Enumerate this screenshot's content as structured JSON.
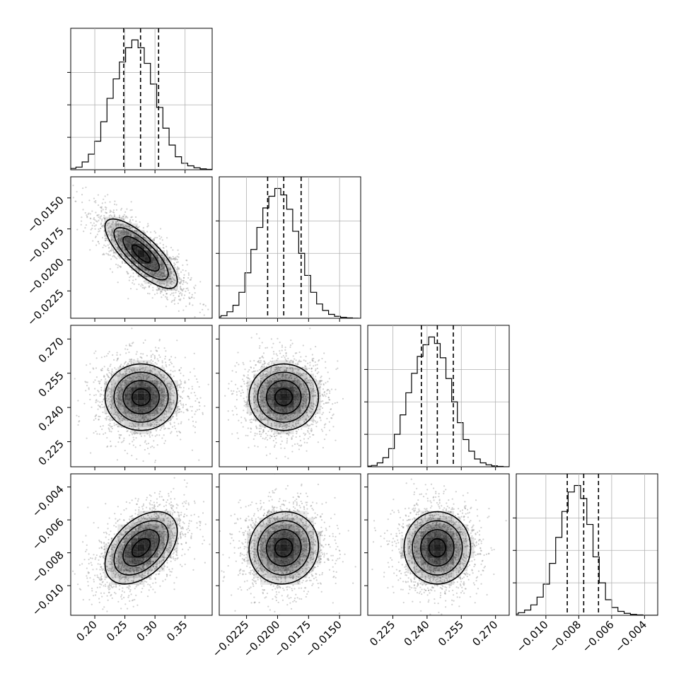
{
  "chart_data": {
    "type": "corner",
    "parameters": [
      {
        "ticks": [
          0.2,
          0.25,
          0.3,
          0.35
        ],
        "tick_labels": [
          "0.20",
          "0.25",
          "0.30",
          "0.35"
        ],
        "range": [
          0.16,
          0.395
        ],
        "mean": 0.277,
        "sigma": 0.03,
        "quantiles": [
          0.248,
          0.276,
          0.306
        ],
        "hist": [
          0.5,
          1,
          2,
          6,
          12,
          22,
          37,
          55,
          70,
          83,
          94,
          100,
          94,
          82,
          66,
          48,
          32,
          19,
          10,
          5,
          3,
          1.5,
          0.7,
          0.3,
          0
        ]
      },
      {
        "ticks": [
          -0.0225,
          -0.02,
          -0.0175,
          -0.015
        ],
        "tick_labels": [
          "−0.0225",
          "−0.0200",
          "−0.0175",
          "−0.0150"
        ],
        "range": [
          -0.0247,
          -0.0133
        ],
        "mean": -0.0195,
        "sigma": 0.0014,
        "quantiles": [
          -0.0208,
          -0.0195,
          -0.0181
        ],
        "hist": [
          0.5,
          1,
          2,
          5,
          10,
          20,
          35,
          53,
          70,
          85,
          94,
          100,
          95,
          84,
          67,
          50,
          33,
          20,
          11,
          6,
          3,
          1.5,
          0.7,
          0.3,
          0
        ]
      },
      {
        "ticks": [
          0.225,
          0.24,
          0.255,
          0.27
        ],
        "tick_labels": [
          "0.225",
          "0.240",
          "0.255",
          "0.270"
        ],
        "range": [
          0.214,
          0.276
        ],
        "mean": 0.2445,
        "sigma": 0.0073,
        "quantiles": [
          0.2375,
          0.2445,
          0.2515
        ],
        "hist": [
          0.5,
          1,
          3,
          7,
          14,
          25,
          40,
          57,
          72,
          85,
          94,
          100,
          95,
          84,
          68,
          50,
          34,
          21,
          12,
          6,
          3,
          1.5,
          0.7,
          0.3,
          0
        ]
      },
      {
        "ticks": [
          -0.01,
          -0.008,
          -0.006,
          -0.004
        ],
        "tick_labels": [
          "−0.010",
          "−0.008",
          "−0.006",
          "−0.004"
        ],
        "range": [
          -0.0118,
          -0.0032
        ],
        "mean": -0.0077,
        "sigma": 0.0011,
        "quantiles": [
          -0.0087,
          -0.0077,
          -0.0068
        ],
        "hist": [
          0.5,
          1,
          2,
          4,
          8,
          14,
          24,
          40,
          60,
          80,
          95,
          100,
          90,
          70,
          45,
          25,
          12,
          6,
          3,
          1.5,
          0.7,
          0.3,
          0,
          0,
          0
        ]
      }
    ],
    "correlations": [
      [
        1,
        -0.78,
        0.0,
        0.45
      ],
      [
        -0.78,
        1,
        0.0,
        0.05
      ],
      [
        0.0,
        0.0,
        1,
        0.0
      ],
      [
        0.45,
        0.05,
        0.0,
        1
      ]
    ],
    "grid": true,
    "colors": {
      "line": "#000000",
      "scatter": "#9a9a9a",
      "density": "#000000",
      "grid": "#b0b0b0"
    }
  }
}
